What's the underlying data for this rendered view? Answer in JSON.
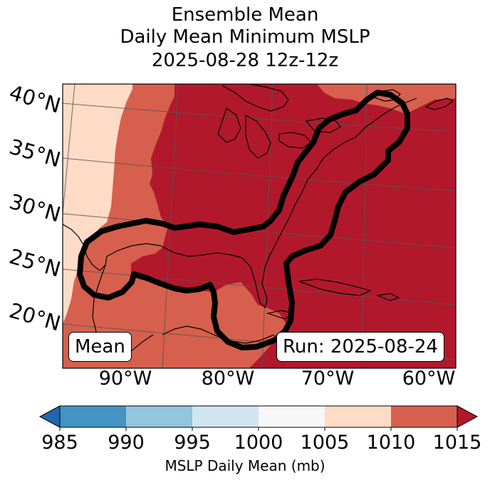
{
  "title": {
    "line1": "Ensemble Mean",
    "line2": "Daily Mean Minimum MSLP",
    "line3": "2025-08-28 12z-12z"
  },
  "map": {
    "lat_labels": [
      "40°N",
      "35°N",
      "30°N",
      "25°N",
      "20°N"
    ],
    "lon_labels": [
      "90°W",
      "80°W",
      "70°W",
      "60°W"
    ],
    "mean_box": "Mean",
    "run_box": "Run: 2025-08-24",
    "fill_colors": {
      "lt1005_1010": "#fddbc7",
      "lt1010_1015": "#d6604d",
      "gt1015": "#b2182b"
    }
  },
  "colorbar": {
    "ticks": [
      "985",
      "990",
      "995",
      "1000",
      "1005",
      "1010",
      "1015"
    ],
    "label": "MSLP Daily Mean (mb)",
    "colors": [
      "#2166ac",
      "#4393c3",
      "#92c5de",
      "#d1e5f0",
      "#f7f7f7",
      "#fddbc7",
      "#d6604d",
      "#b2182b"
    ]
  }
}
